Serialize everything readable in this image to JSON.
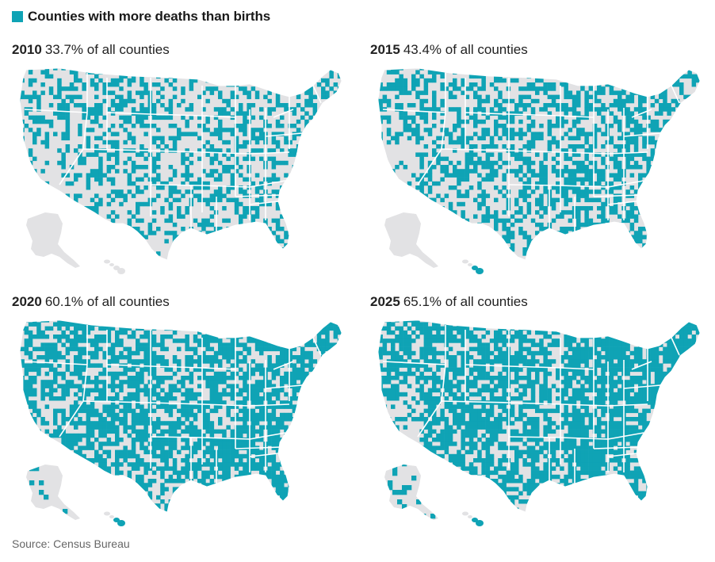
{
  "legend": {
    "label": "Counties with more deaths than births",
    "color": "#0fa3b5"
  },
  "colors": {
    "highlight": "#0fa3b5",
    "base": "#e2e2e4",
    "border": "#ffffff"
  },
  "panels": [
    {
      "year": "2010",
      "pct_text": "33.7% of all counties",
      "share": 0.337
    },
    {
      "year": "2015",
      "pct_text": "43.4% of all counties",
      "share": 0.434
    },
    {
      "year": "2020",
      "pct_text": "60.1% of all counties",
      "share": 0.601
    },
    {
      "year": "2025",
      "pct_text": "65.1% of all counties",
      "share": 0.651
    }
  ],
  "source": "Source: Census Bureau"
}
